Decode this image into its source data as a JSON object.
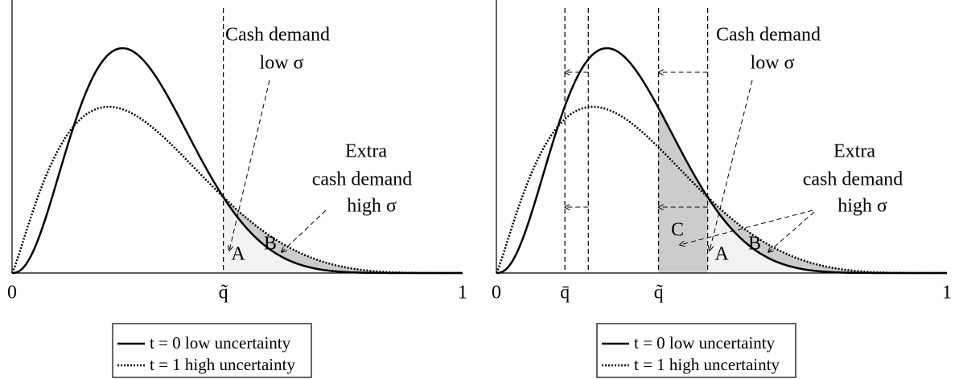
{
  "panels": [
    {
      "x_labels": [
        "0",
        "q̃",
        "1"
      ],
      "annotations": {
        "cash_demand": "Cash demand",
        "low_sigma": "low σ",
        "extra": "Extra",
        "extra_cash_demand": "cash demand",
        "high_sigma": "high σ",
        "a": "A",
        "b": "B"
      },
      "legend": [
        "t = 0 low uncertainty",
        "t = 1 high uncertainty"
      ]
    },
    {
      "x_labels": [
        "0",
        "q̄",
        "q̃",
        "1"
      ],
      "annotations": {
        "cash_demand": "Cash demand",
        "low_sigma": "low σ",
        "extra": "Extra",
        "extra_cash_demand": "cash demand",
        "high_sigma": "high σ",
        "a": "A",
        "b": "B",
        "c": "C"
      },
      "legend": [
        "t = 0 low uncertainty",
        "t = 1 high uncertainty"
      ]
    }
  ]
}
